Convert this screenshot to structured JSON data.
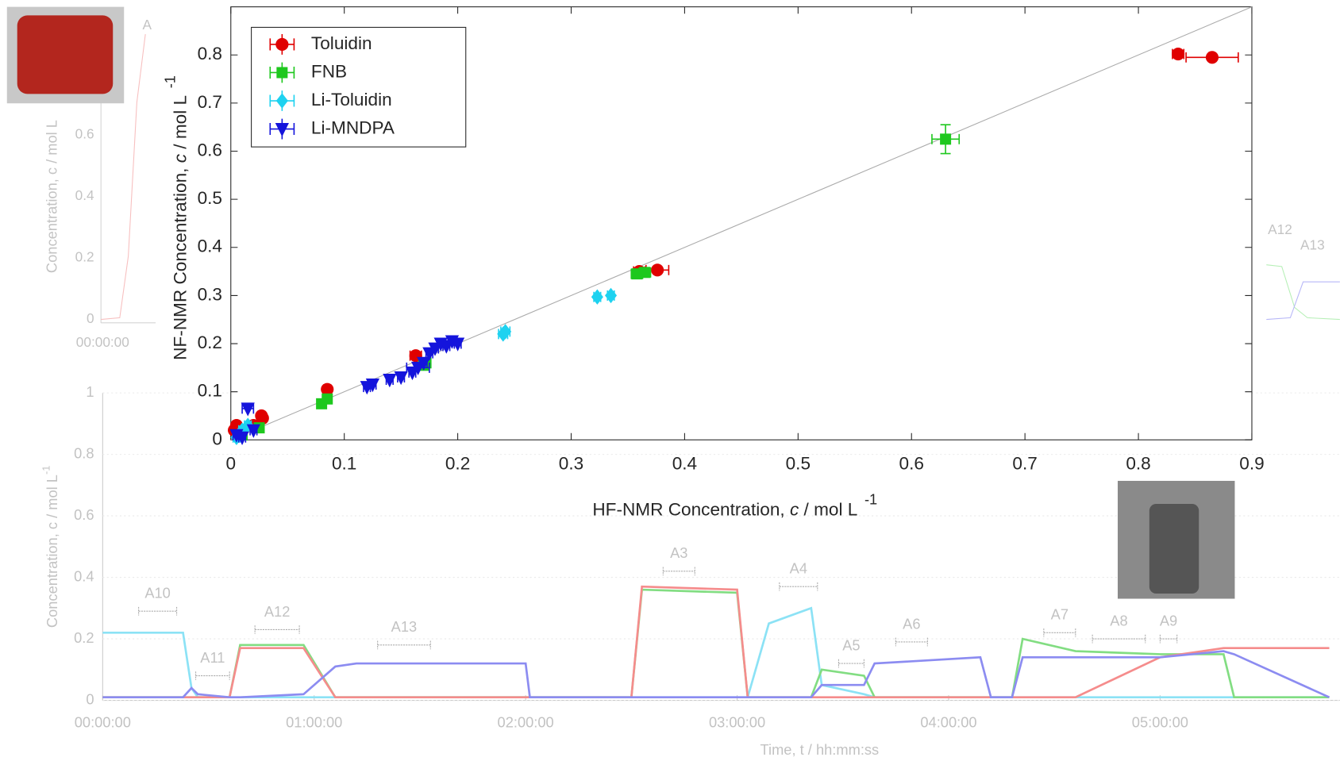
{
  "chart_data": [
    {
      "type": "scatter",
      "xlabel": [
        "HF-NMR Concentration, ",
        "c",
        " / mol L",
        "-1"
      ],
      "ylabel": [
        "NF-NMR Concentration, ",
        "c",
        " / mol L",
        "-1"
      ],
      "xlim": [
        0,
        0.9
      ],
      "ylim": [
        0,
        0.9
      ],
      "xticks": [
        0,
        0.1,
        0.2,
        0.3,
        0.4,
        0.5,
        0.6,
        0.7,
        0.8,
        0.9
      ],
      "yticks": [
        0,
        0.1,
        0.2,
        0.3,
        0.4,
        0.5,
        0.6,
        0.7,
        0.8
      ],
      "identity_line": true,
      "legend": "upper-left",
      "series": [
        {
          "name": "Toluidin",
          "color": "#e00000",
          "marker": "circle",
          "x": [
            0.003,
            0.005,
            0.02,
            0.028,
            0.027,
            0.085,
            0.163,
            0.36,
            0.376,
            0.835,
            0.865
          ],
          "y": [
            0.02,
            0.03,
            0.03,
            0.045,
            0.05,
            0.105,
            0.175,
            0.35,
            0.353,
            0.802,
            0.795
          ],
          "xerr": [
            0.003,
            0.003,
            0.003,
            0.003,
            0.003,
            0.003,
            0.005,
            0.005,
            0.01,
            0.005,
            0.023
          ]
        },
        {
          "name": "FNB",
          "color": "#1ec81e",
          "marker": "square",
          "x": [
            0.01,
            0.025,
            0.08,
            0.085,
            0.17,
            0.172,
            0.358,
            0.365,
            0.63
          ],
          "y": [
            0.01,
            0.025,
            0.075,
            0.085,
            0.155,
            0.16,
            0.345,
            0.348,
            0.625
          ],
          "xerr": [
            0.003,
            0.003,
            0.003,
            0.003,
            0.003,
            0.003,
            0.005,
            0.005,
            0.012
          ],
          "yerr": [
            0.003,
            0.003,
            0.003,
            0.003,
            0.003,
            0.003,
            0.005,
            0.005,
            0.03
          ]
        },
        {
          "name": "Li-Toluidin",
          "color": "#1ed2f0",
          "marker": "diamond",
          "x": [
            0.005,
            0.01,
            0.015,
            0.24,
            0.242,
            0.323,
            0.335
          ],
          "y": [
            0.005,
            0.02,
            0.03,
            0.22,
            0.225,
            0.297,
            0.3
          ],
          "xerr": [
            0.003,
            0.003,
            0.003,
            0.004,
            0.004,
            0.003,
            0.003
          ]
        },
        {
          "name": "Li-MNDPA",
          "color": "#1414dc",
          "marker": "triangle",
          "x": [
            0.12,
            0.125,
            0.14,
            0.15,
            0.16,
            0.165,
            0.17,
            0.175,
            0.18,
            0.185,
            0.19,
            0.195,
            0.2,
            0.005,
            0.01,
            0.015,
            0.02
          ],
          "y": [
            0.11,
            0.115,
            0.125,
            0.13,
            0.14,
            0.15,
            0.16,
            0.18,
            0.19,
            0.2,
            0.195,
            0.205,
            0.2,
            0.01,
            0.005,
            0.065,
            0.02
          ],
          "xerr": [
            0.003,
            0.003,
            0.003,
            0.003,
            0.003,
            0.01,
            0.003,
            0.003,
            0.003,
            0.003,
            0.003,
            0.003,
            0.003,
            0.003,
            0.003,
            0.005,
            0.003
          ]
        }
      ]
    },
    {
      "type": "line",
      "xlabel": "Time, t / hh:mm:ss",
      "ylabel": [
        "Concentration, c / mol L",
        "-1"
      ],
      "xlim": [
        0,
        5.85
      ],
      "ylim": [
        0,
        1
      ],
      "xticks": [
        {
          "value": 0,
          "label": "00:00:00"
        },
        {
          "value": 1,
          "label": "01:00:00"
        },
        {
          "value": 2,
          "label": "02:00:00"
        },
        {
          "value": 3,
          "label": "03:00:00"
        },
        {
          "value": 4,
          "label": "04:00:00"
        },
        {
          "value": 5,
          "label": "05:00:00"
        }
      ],
      "yticks": [
        0,
        0.2,
        0.4,
        0.6,
        0.8,
        1
      ],
      "x": [
        0,
        0.38,
        0.42,
        0.45,
        0.6,
        0.65,
        0.95,
        1.1,
        1.2,
        2.0,
        2.02,
        2.3,
        2.5,
        2.55,
        3.0,
        3.05,
        3.15,
        3.35,
        3.4,
        3.6,
        3.65,
        4.15,
        4.2,
        4.3,
        4.35,
        4.6,
        5.0,
        5.3,
        5.35,
        5.8
      ],
      "series": [
        {
          "color": "#40d0f0",
          "values": [
            0.22,
            0.22,
            0.04,
            0.01,
            0.01,
            0.01,
            0.01,
            0.01,
            0.01,
            0.01,
            0.01,
            0.01,
            0.01,
            0.01,
            0.01,
            0.01,
            0.25,
            0.3,
            0.05,
            0.02,
            0.01,
            0.01,
            0.01,
            0.01,
            0.01,
            0.01,
            0.01,
            0.01,
            0.01,
            0.01
          ]
        },
        {
          "color": "#30c830",
          "values": [
            0.01,
            0.01,
            0.01,
            0.01,
            0.01,
            0.18,
            0.18,
            0.01,
            0.01,
            0.01,
            0.01,
            0.01,
            0.01,
            0.36,
            0.35,
            0.01,
            0.01,
            0.01,
            0.1,
            0.08,
            0.01,
            0.01,
            0.01,
            0.01,
            0.2,
            0.16,
            0.15,
            0.15,
            0.01,
            0.01
          ]
        },
        {
          "color": "#f04040",
          "values": [
            0.01,
            0.01,
            0.01,
            0.01,
            0.01,
            0.17,
            0.17,
            0.01,
            0.01,
            0.01,
            0.01,
            0.01,
            0.01,
            0.37,
            0.36,
            0.01,
            0.01,
            0.01,
            0.01,
            0.01,
            0.01,
            0.01,
            0.01,
            0.01,
            0.01,
            0.01,
            0.14,
            0.17,
            0.17,
            0.17
          ]
        },
        {
          "color": "#4040e8",
          "values": [
            0.01,
            0.01,
            0.04,
            0.02,
            0.01,
            0.01,
            0.02,
            0.11,
            0.12,
            0.12,
            0.01,
            0.01,
            0.01,
            0.01,
            0.01,
            0.01,
            0.01,
            0.01,
            0.05,
            0.05,
            0.12,
            0.14,
            0.01,
            0.01,
            0.14,
            0.14,
            0.14,
            0.16,
            0.15,
            0.01
          ]
        }
      ],
      "annotations": [
        {
          "label": "A10",
          "x": [
            0.17,
            0.35
          ],
          "y": 0.29
        },
        {
          "label": "A11",
          "x": [
            0.44,
            0.6
          ],
          "y": 0.08
        },
        {
          "label": "A12",
          "x": [
            0.72,
            0.93
          ],
          "y": 0.23
        },
        {
          "label": "A13",
          "x": [
            1.3,
            1.55
          ],
          "y": 0.18
        },
        {
          "label": "A3",
          "x": [
            2.65,
            2.8
          ],
          "y": 0.42
        },
        {
          "label": "A4",
          "x": [
            3.2,
            3.38
          ],
          "y": 0.37
        },
        {
          "label": "A5",
          "x": [
            3.48,
            3.6
          ],
          "y": 0.12
        },
        {
          "label": "A6",
          "x": [
            3.75,
            3.9
          ],
          "y": 0.19
        },
        {
          "label": "A7",
          "x": [
            4.45,
            4.6
          ],
          "y": 0.22
        },
        {
          "label": "A8",
          "x": [
            4.68,
            4.93
          ],
          "y": 0.2
        },
        {
          "label": "A9",
          "x": [
            5.0,
            5.08
          ],
          "y": 0.2
        }
      ]
    }
  ],
  "fragments": {
    "top_left_yticks": [
      "0",
      "0.2",
      "0.4",
      "0.6"
    ],
    "top_left_xtick": "00:00:00",
    "top_left_ylabel": "Concentration, c / mol L",
    "top_left_annotation": "A",
    "right_annotations": [
      "A12",
      "A13"
    ]
  }
}
